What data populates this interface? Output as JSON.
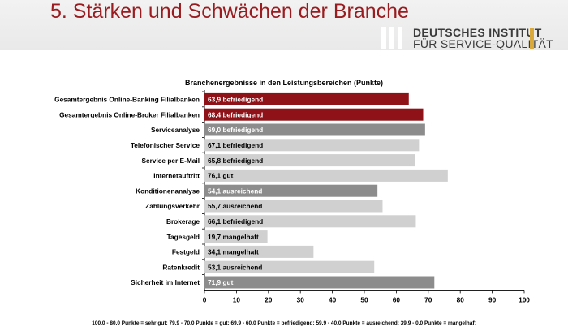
{
  "slide": {
    "title": "5. Stärken und Schwächen der Branche"
  },
  "logo": {
    "line1": "DEUTSCHES INSTITUT",
    "line2": "FÜR SERVICE-QUALITÄT",
    "accent": "#d9a93b"
  },
  "chart_data": {
    "type": "bar",
    "orientation": "horizontal",
    "title": "Branchenergebnisse in den Leistungsbereichen (Punkte)",
    "xlim": [
      0,
      100
    ],
    "xticks": [
      0,
      10,
      20,
      30,
      40,
      50,
      60,
      70,
      80,
      90,
      100
    ],
    "categories": [
      "Gesamtergebnis Online-Banking Filialbanken",
      "Gesamtergebnis Online-Broker Filialbanken",
      "Serviceanalyse",
      "Telefonischer Service",
      "Service per E-Mail",
      "Internetauftritt",
      "Konditionenanalyse",
      "Zahlungsverkehr",
      "Brokerage",
      "Tagesgeld",
      "Festgeld",
      "Ratenkredit",
      "Sicherheit im Internet"
    ],
    "values": [
      63.9,
      68.4,
      69.0,
      67.1,
      65.8,
      76.1,
      54.1,
      55.7,
      66.1,
      19.7,
      34.1,
      53.1,
      71.9
    ],
    "value_labels": [
      "63,9",
      "68,4",
      "69,0",
      "67,1",
      "65,8",
      "76,1",
      "54,1",
      "55,7",
      "66,1",
      "19,7",
      "34,1",
      "53,1",
      "71,9"
    ],
    "ratings": [
      "befriedigend",
      "befriedigend",
      "befriedigend",
      "befriedigend",
      "befriedigend",
      "gut",
      "ausreichend",
      "ausreichend",
      "befriedigend",
      "mangelhaft",
      "mangelhaft",
      "ausreichend",
      "gut"
    ],
    "bar_colors": [
      "#8e1218",
      "#8e1218",
      "#8c8c8c",
      "#d0d0d0",
      "#d0d0d0",
      "#d0d0d0",
      "#8c8c8c",
      "#d0d0d0",
      "#d0d0d0",
      "#d0d0d0",
      "#d0d0d0",
      "#d0d0d0",
      "#8c8c8c"
    ],
    "label_colors": [
      "#ffffff",
      "#ffffff",
      "#ffffff",
      "#000000",
      "#000000",
      "#000000",
      "#ffffff",
      "#000000",
      "#000000",
      "#000000",
      "#000000",
      "#000000",
      "#ffffff"
    ],
    "grid": false,
    "legend": "none"
  },
  "footnote": "100,0 - 80,0 Punkte = sehr gut; 79,9 - 70,0 Punkte = gut; 69,9 - 60,0 Punkte = befriedigend; 59,9 - 40,0 Punkte = ausreichend; 39,9 - 0,0 Punkte = mangelhaft"
}
